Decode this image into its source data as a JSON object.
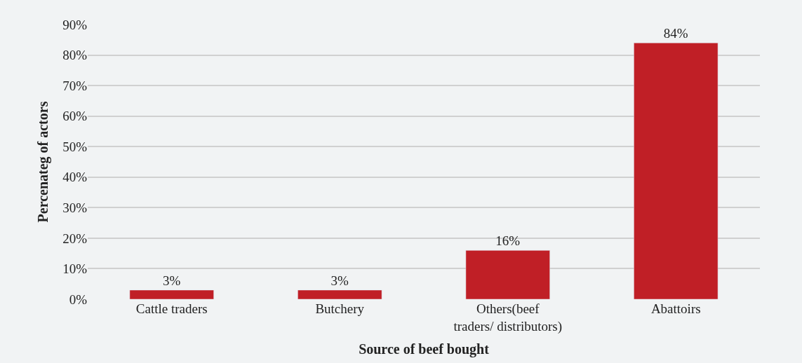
{
  "chart_data": {
    "type": "bar",
    "xlabel": "Source of beef bought",
    "ylabel": "Percenateg of actors",
    "categories": [
      "Cattle traders",
      "Butchery",
      "Others(beef traders/ distributors)",
      "Abattoirs"
    ],
    "values": [
      3,
      3,
      16,
      84
    ],
    "value_labels": [
      "3%",
      "3%",
      "16%",
      "84%"
    ],
    "color": "#c01f26",
    "ylim": [
      0,
      90
    ],
    "yticks": [
      {
        "value": 0,
        "label": "0%"
      },
      {
        "value": 10,
        "label": "10%"
      },
      {
        "value": 20,
        "label": "20%"
      },
      {
        "value": 30,
        "label": "30%"
      },
      {
        "value": 40,
        "label": "40%"
      },
      {
        "value": 50,
        "label": "50%"
      },
      {
        "value": 60,
        "label": "60%"
      },
      {
        "value": 70,
        "label": "70%"
      },
      {
        "value": 80,
        "label": "80%"
      },
      {
        "value": 90,
        "label": "90%"
      }
    ],
    "grid": "y",
    "legend": false
  }
}
